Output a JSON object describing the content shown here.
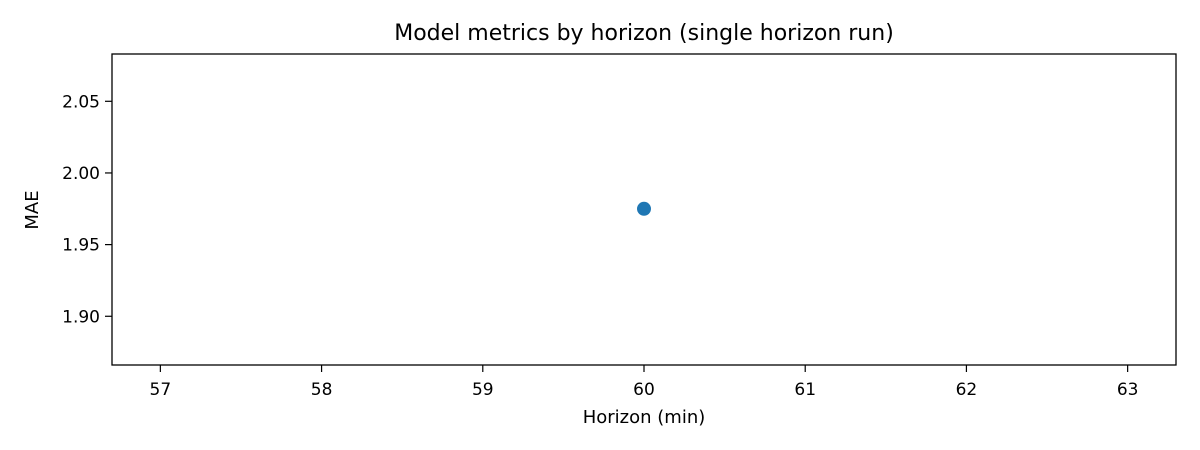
{
  "chart_data": {
    "type": "scatter",
    "title": "Model metrics by horizon (single horizon run)",
    "xlabel": "Horizon (min)",
    "ylabel": "MAE",
    "xlim": [
      56.7,
      63.3
    ],
    "ylim": [
      1.866,
      2.083
    ],
    "x_ticks": [
      57,
      58,
      59,
      60,
      61,
      62,
      63
    ],
    "y_ticks": [
      1.9,
      1.95,
      2.0,
      2.05
    ],
    "grid": false,
    "legend": "none",
    "series": [
      {
        "color": "#1f77b4",
        "points": [
          {
            "x": 60,
            "y": 1.975
          }
        ]
      }
    ]
  }
}
